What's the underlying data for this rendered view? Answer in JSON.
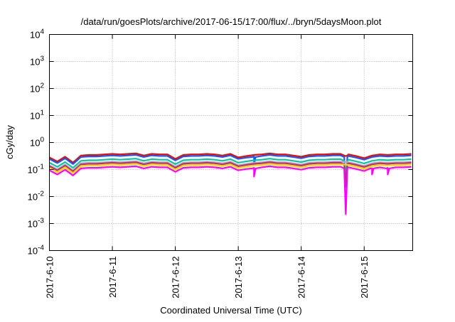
{
  "chart_data": {
    "type": "line",
    "title": "/data/run/goesPlots/archive/2017-06-15/17:00/flux/../bryn/5daysMoon.plot",
    "xlabel": "Coordinated Universal Time (UTC)",
    "ylabel": "cGy/day",
    "yscale": "log",
    "ylim": [
      0.0001,
      10000
    ],
    "y_ticks": [
      {
        "base": "10",
        "exp": "4"
      },
      {
        "base": "10",
        "exp": "3"
      },
      {
        "base": "10",
        "exp": "2"
      },
      {
        "base": "10",
        "exp": "1"
      },
      {
        "base": "10",
        "exp": "0"
      },
      {
        "base": "10",
        "exp": "-1"
      },
      {
        "base": "10",
        "exp": "-2"
      },
      {
        "base": "10",
        "exp": "-3"
      },
      {
        "base": "10",
        "exp": "-4"
      }
    ],
    "xlim_hours": [
      0,
      138.5
    ],
    "x_ticks": [
      {
        "label": "2017-6-10",
        "hour": 0
      },
      {
        "label": "2017-6-11",
        "hour": 24
      },
      {
        "label": "2017-6-12",
        "hour": 48
      },
      {
        "label": "2017-6-13",
        "hour": 72
      },
      {
        "label": "2017-6-14",
        "hour": 96
      },
      {
        "label": "2017-6-15",
        "hour": 120
      }
    ],
    "grid": true,
    "sample_step_hours": 3,
    "profile_note": "series value = level * profile[i] * (dip factor when applicable)",
    "profile": [
      0.85,
      0.6,
      0.9,
      0.55,
      1.0,
      1.05,
      1.05,
      1.1,
      1.15,
      1.1,
      1.15,
      1.2,
      1.0,
      1.15,
      1.1,
      1.1,
      0.75,
      1.05,
      1.1,
      1.1,
      1.15,
      1.1,
      1.0,
      1.15,
      0.85,
      0.95,
      1.05,
      1.1,
      1.2,
      1.1,
      1.1,
      1.0,
      0.9,
      1.05,
      1.1,
      1.1,
      1.15,
      1.15,
      1.1,
      0.95,
      0.8,
      1.0,
      1.1,
      1.05,
      1.1,
      1.1,
      1.15
    ],
    "series": [
      {
        "name": "red",
        "color": "#ff0000",
        "level": 0.33,
        "dips": [
          {
            "hour": 113,
            "factor": 0.95
          }
        ]
      },
      {
        "name": "blue",
        "color": "#0060ff",
        "level": 0.29,
        "dips": [
          {
            "hour": 113,
            "factor": 0.08
          },
          {
            "hour": 78,
            "factor": 0.5
          }
        ]
      },
      {
        "name": "teal",
        "color": "#00c8a0",
        "level": 0.21,
        "dips": [
          {
            "hour": 113,
            "factor": 0.3
          }
        ]
      },
      {
        "name": "pink",
        "color": "#ff80c0",
        "level": 0.17,
        "dips": []
      },
      {
        "name": "brown",
        "color": "#a04060",
        "level": 0.155,
        "dips": [
          {
            "hour": 113,
            "factor": 0.2
          }
        ]
      },
      {
        "name": "yellow",
        "color": "#ffd000",
        "level": 0.135,
        "dips": []
      },
      {
        "name": "magenta",
        "color": "#ff00ff",
        "level": 0.11,
        "dips": [
          {
            "hour": 113,
            "factor": 0.02
          },
          {
            "hour": 78,
            "factor": 0.5
          },
          {
            "hour": 123,
            "factor": 0.6
          },
          {
            "hour": 129,
            "factor": 0.6
          }
        ]
      }
    ]
  }
}
